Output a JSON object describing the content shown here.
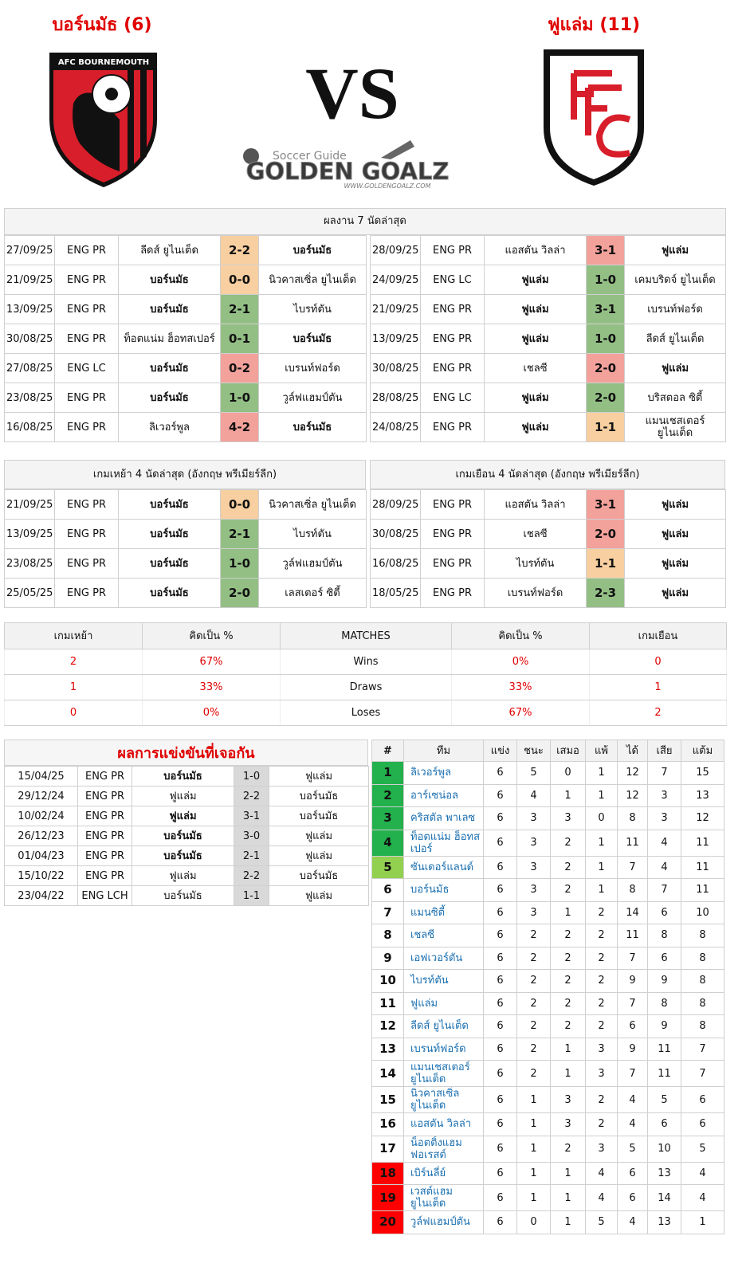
{
  "header": {
    "left_title": "บอร์นมัธ (6)",
    "right_title": "ฟูแล่ม (11)",
    "vs": "VS",
    "left_badge_text": "AFC BOURNEMOUTH",
    "logo_tagline": "Soccer Guide",
    "logo_name": "GOLDEN GOALZ",
    "logo_url": "WWW.GOLDENGOALZ.COM"
  },
  "result_colors": {
    "win": "#93bf85",
    "draw": "#f8cfa0",
    "loss": "#f3a19b"
  },
  "recent": {
    "title": "ผลงาน 7 นัดล่าสุด",
    "left": [
      [
        "27/09/25",
        "ENG PR",
        "ลีดส์ ยูไนเต็ด",
        "2-2",
        "บอร์นมัธ"
      ],
      [
        "21/09/25",
        "ENG PR",
        "บอร์นมัธ",
        "0-0",
        "นิวคาสเซิ่ล ยูไนเต็ด"
      ],
      [
        "13/09/25",
        "ENG PR",
        "บอร์นมัธ",
        "2-1",
        "ไบรท์ตัน"
      ],
      [
        "30/08/25",
        "ENG PR",
        "ท็อตแน่ม ฮ็อทสเปอร์",
        "0-1",
        "บอร์นมัธ"
      ],
      [
        "27/08/25",
        "ENG LC",
        "บอร์นมัธ",
        "0-2",
        "เบรนท์ฟอร์ด"
      ],
      [
        "23/08/25",
        "ENG PR",
        "บอร์นมัธ",
        "1-0",
        "วูล์ฟแฮมป์ตัน"
      ],
      [
        "16/08/25",
        "ENG PR",
        "ลิเวอร์พูล",
        "4-2",
        "บอร์นมัธ"
      ]
    ],
    "right": [
      [
        "28/09/25",
        "ENG PR",
        "แอสตัน วิลล่า",
        "3-1",
        "ฟูแล่ม"
      ],
      [
        "24/09/25",
        "ENG LC",
        "ฟูแล่ม",
        "1-0",
        "เคมบริดจ์ ยูไนเต็ด"
      ],
      [
        "21/09/25",
        "ENG PR",
        "ฟูแล่ม",
        "3-1",
        "เบรนท์ฟอร์ด"
      ],
      [
        "13/09/25",
        "ENG PR",
        "ฟูแล่ม",
        "1-0",
        "ลีดส์ ยูไนเต็ด"
      ],
      [
        "30/08/25",
        "ENG PR",
        "เชลซี",
        "2-0",
        "ฟูแล่ม"
      ],
      [
        "28/08/25",
        "ENG LC",
        "ฟูแล่ม",
        "2-0",
        "บริสตอล ซิตี้"
      ],
      [
        "24/08/25",
        "ENG PR",
        "ฟูแล่ม",
        "1-1",
        "แมนเชสเตอร์ ยูไนเต็ด"
      ]
    ]
  },
  "venue": {
    "left_title": "เกมเหย้า 4 นัดล่าสุด (อังกฤษ พรีเมียร์ลีก)",
    "right_title": "เกมเยือน 4 นัดล่าสุด (อังกฤษ พรีเมียร์ลีก)",
    "left": [
      [
        "21/09/25",
        "ENG PR",
        "บอร์นมัธ",
        "0-0",
        "นิวคาสเซิ่ล ยูไนเต็ด"
      ],
      [
        "13/09/25",
        "ENG PR",
        "บอร์นมัธ",
        "2-1",
        "ไบรท์ตัน"
      ],
      [
        "23/08/25",
        "ENG PR",
        "บอร์นมัธ",
        "1-0",
        "วูล์ฟแฮมป์ตัน"
      ],
      [
        "25/05/25",
        "ENG PR",
        "บอร์นมัธ",
        "2-0",
        "เลสเตอร์ ซิตี้"
      ]
    ],
    "right": [
      [
        "28/09/25",
        "ENG PR",
        "แอสตัน วิลล่า",
        "3-1",
        "ฟูแล่ม"
      ],
      [
        "30/08/25",
        "ENG PR",
        "เชลซี",
        "2-0",
        "ฟูแล่ม"
      ],
      [
        "16/08/25",
        "ENG PR",
        "ไบรท์ตัน",
        "1-1",
        "ฟูแล่ม"
      ],
      [
        "18/05/25",
        "ENG PR",
        "เบรนท์ฟอร์ด",
        "2-3",
        "ฟูแล่ม"
      ]
    ]
  },
  "summary": {
    "headers": [
      "เกมเหย้า",
      "คิดเป็น %",
      "MATCHES",
      "คิดเป็น %",
      "เกมเยือน"
    ],
    "rows": [
      [
        2,
        "67%",
        "Wins",
        "0%",
        0
      ],
      [
        1,
        "33%",
        "Draws",
        "33%",
        1
      ],
      [
        0,
        "0%",
        "Loses",
        "67%",
        2
      ]
    ]
  },
  "h2h": {
    "title": "ผลการแข่งขันที่เจอกัน",
    "rows": [
      [
        "15/04/25",
        "ENG PR",
        "บอร์นมัธ",
        "1-0",
        "ฟูแล่ม"
      ],
      [
        "29/12/24",
        "ENG PR",
        "ฟูแล่ม",
        "2-2",
        "บอร์นมัธ"
      ],
      [
        "10/02/24",
        "ENG PR",
        "ฟูแล่ม",
        "3-1",
        "บอร์นมัธ"
      ],
      [
        "26/12/23",
        "ENG PR",
        "บอร์นมัธ",
        "3-0",
        "ฟูแล่ม"
      ],
      [
        "01/04/23",
        "ENG PR",
        "บอร์นมัธ",
        "2-1",
        "ฟูแล่ม"
      ],
      [
        "15/10/22",
        "ENG PR",
        "ฟูแล่ม",
        "2-2",
        "บอร์นมัธ"
      ],
      [
        "23/04/22",
        "ENG LCH",
        "บอร์นมัธ",
        "1-1",
        "ฟูแล่ม"
      ]
    ]
  },
  "standings": {
    "headers": [
      "#",
      "ทีม",
      "แข่ง",
      "ชนะ",
      "เสมอ",
      "แพ้",
      "ได้",
      "เสีย",
      "แต้ม"
    ],
    "position_colors": [
      "#22b14c",
      "#22b14c",
      "#22b14c",
      "#22b14c",
      "#92d050",
      "#ffffff",
      "#ffffff",
      "#ffffff",
      "#ffffff",
      "#ffffff",
      "#ffffff",
      "#ffffff",
      "#ffffff",
      "#ffffff",
      "#ffffff",
      "#ffffff",
      "#ffffff",
      "#ff0000",
      "#ff0000",
      "#ff0000"
    ],
    "rows": [
      [
        1,
        "ลิเวอร์พูล",
        6,
        5,
        0,
        1,
        12,
        7,
        15
      ],
      [
        2,
        "อาร์เซน่อล",
        6,
        4,
        1,
        1,
        12,
        3,
        13
      ],
      [
        3,
        "คริสตัล พาเลซ",
        6,
        3,
        3,
        0,
        8,
        3,
        12
      ],
      [
        4,
        "ท็อตแน่ม ฮ็อทสเปอร์",
        6,
        3,
        2,
        1,
        11,
        4,
        11
      ],
      [
        5,
        "ซันเดอร์แลนด์",
        6,
        3,
        2,
        1,
        7,
        4,
        11
      ],
      [
        6,
        "บอร์นมัธ",
        6,
        3,
        2,
        1,
        8,
        7,
        11
      ],
      [
        7,
        "แมนซิตี้",
        6,
        3,
        1,
        2,
        14,
        6,
        10
      ],
      [
        8,
        "เชลซี",
        6,
        2,
        2,
        2,
        11,
        8,
        8
      ],
      [
        9,
        "เอฟเวอร์ตัน",
        6,
        2,
        2,
        2,
        7,
        6,
        8
      ],
      [
        10,
        "ไบรท์ตัน",
        6,
        2,
        2,
        2,
        9,
        9,
        8
      ],
      [
        11,
        "ฟูแล่ม",
        6,
        2,
        2,
        2,
        7,
        8,
        8
      ],
      [
        12,
        "ลีดส์ ยูไนเต็ด",
        6,
        2,
        2,
        2,
        6,
        9,
        8
      ],
      [
        13,
        "เบรนท์ฟอร์ด",
        6,
        2,
        1,
        3,
        9,
        11,
        7
      ],
      [
        14,
        "แมนเชสเตอร์ ยูไนเต็ด",
        6,
        2,
        1,
        3,
        7,
        11,
        7
      ],
      [
        15,
        "นิวคาสเซิ่ล ยูไนเต็ด",
        6,
        1,
        3,
        2,
        4,
        5,
        6
      ],
      [
        16,
        "แอสตัน วิลล่า",
        6,
        1,
        3,
        2,
        4,
        6,
        6
      ],
      [
        17,
        "น็อตติ้งแฮม ฟอเรสต์",
        6,
        1,
        2,
        3,
        5,
        10,
        5
      ],
      [
        18,
        "เบิร์นลี่ย์",
        6,
        1,
        1,
        4,
        6,
        13,
        4
      ],
      [
        19,
        "เวสต์แฮม ยูไนเต็ด",
        6,
        1,
        1,
        4,
        6,
        14,
        4
      ],
      [
        20,
        "วูล์ฟแฮมป์ตัน",
        6,
        0,
        1,
        5,
        4,
        13,
        1
      ]
    ]
  }
}
